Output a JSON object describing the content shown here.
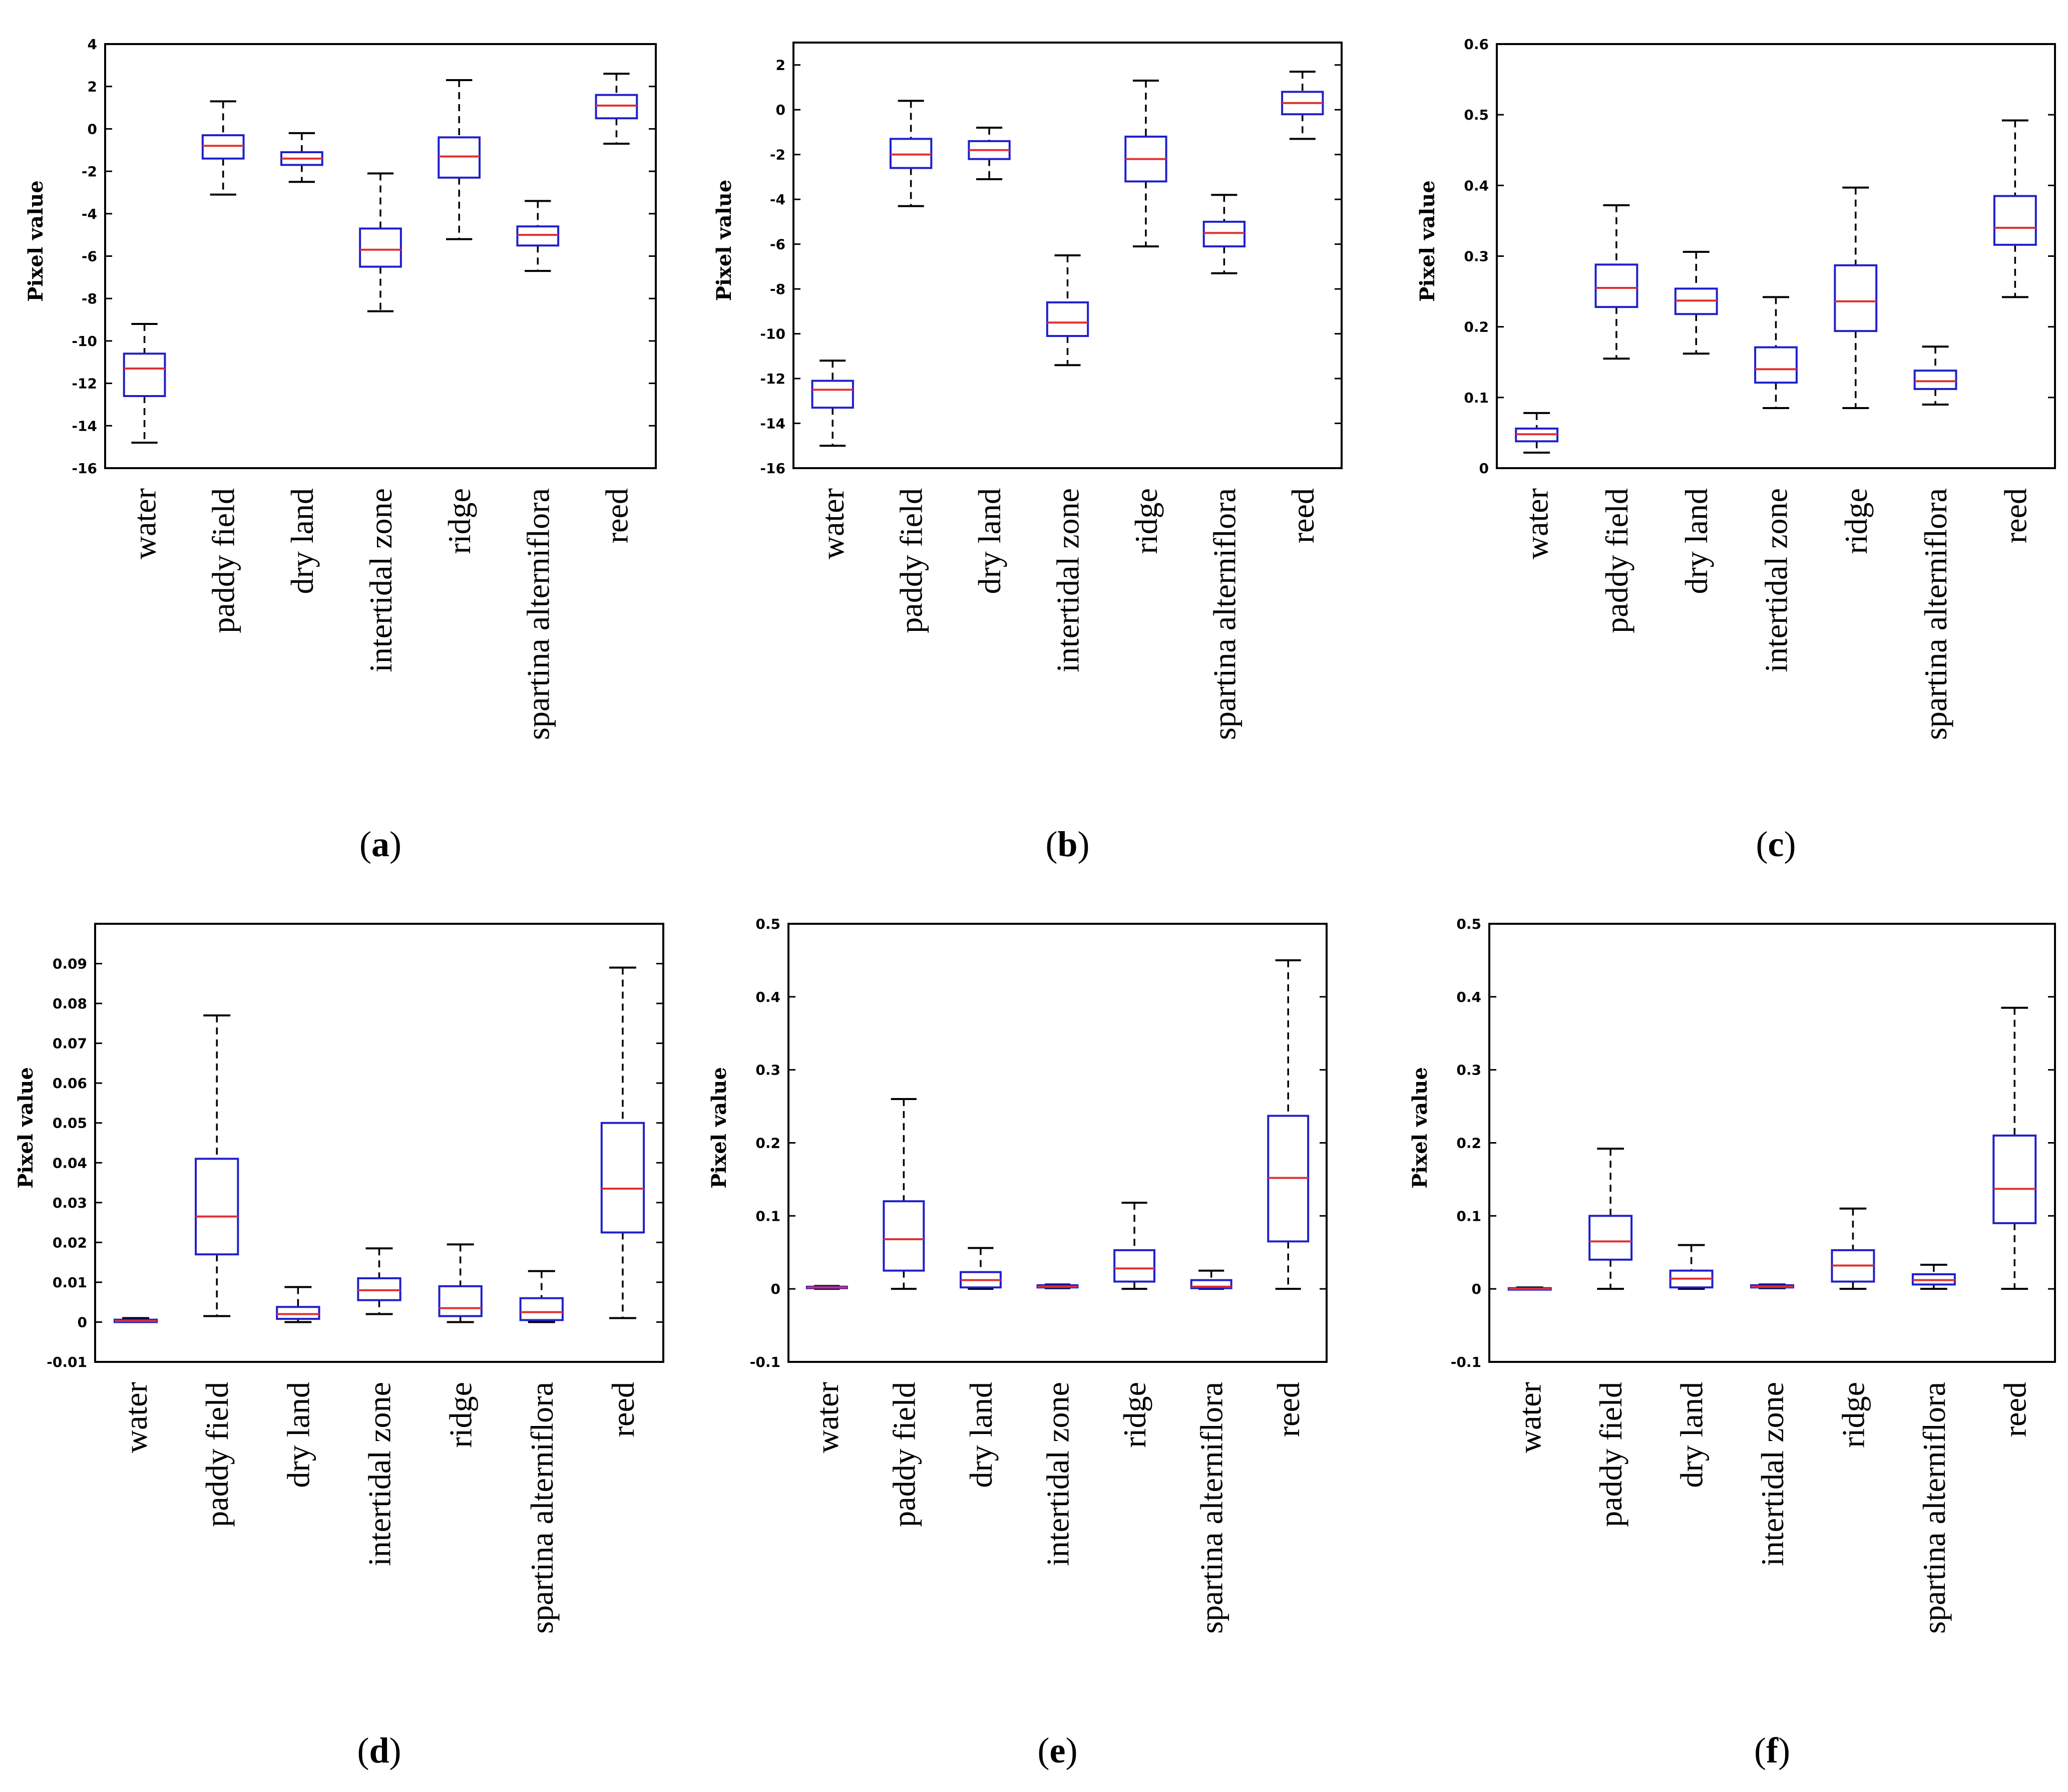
{
  "colors": {
    "box": "#1f1fcc",
    "median": "#e03030",
    "whisker": "#000000",
    "axis": "#000000"
  },
  "chart_data": [
    {
      "type": "box",
      "panel_label": "a",
      "ylabel": "Pixel value",
      "categories": [
        "water",
        "paddy field",
        "dry land",
        "intertidal zone",
        "ridge",
        "spartina alterniflora",
        "reed"
      ],
      "ylim": [
        -16,
        4
      ],
      "yticks": [
        -16,
        -14,
        -12,
        -10,
        -8,
        -6,
        -4,
        -2,
        0,
        2,
        4
      ],
      "ytick_labels": [
        "-16",
        "-14",
        "-12",
        "-10",
        "-8",
        "-6",
        "-4",
        "-2",
        "0",
        "2",
        "4"
      ],
      "boxes": [
        {
          "min": -14.8,
          "q1": -12.6,
          "median": -11.3,
          "q3": -10.6,
          "max": -9.2
        },
        {
          "min": -3.1,
          "q1": -1.4,
          "median": -0.8,
          "q3": -0.3,
          "max": 1.3
        },
        {
          "min": -2.5,
          "q1": -1.7,
          "median": -1.4,
          "q3": -1.1,
          "max": -0.2
        },
        {
          "min": -8.6,
          "q1": -6.5,
          "median": -5.7,
          "q3": -4.7,
          "max": -2.1
        },
        {
          "min": -5.2,
          "q1": -2.3,
          "median": -1.3,
          "q3": -0.4,
          "max": 2.3
        },
        {
          "min": -6.7,
          "q1": -5.5,
          "median": -5.0,
          "q3": -4.6,
          "max": -3.4
        },
        {
          "min": -0.7,
          "q1": 0.5,
          "median": 1.1,
          "q3": 1.6,
          "max": 2.6
        }
      ]
    },
    {
      "type": "box",
      "panel_label": "b",
      "ylabel": "Pixel value",
      "categories": [
        "water",
        "paddy field",
        "dry land",
        "intertidal zone",
        "ridge",
        "spartina alterniflora",
        "reed"
      ],
      "ylim": [
        -16,
        3
      ],
      "yticks": [
        -16,
        -14,
        -12,
        -10,
        -8,
        -6,
        -4,
        -2,
        0,
        2
      ],
      "ytick_labels": [
        "-16",
        "-14",
        "-12",
        "-10",
        "-8",
        "-6",
        "-4",
        "-2",
        "0",
        "2"
      ],
      "boxes": [
        {
          "min": -15.0,
          "q1": -13.3,
          "median": -12.5,
          "q3": -12.1,
          "max": -11.2
        },
        {
          "min": -4.3,
          "q1": -2.6,
          "median": -2.0,
          "q3": -1.3,
          "max": 0.4
        },
        {
          "min": -3.1,
          "q1": -2.2,
          "median": -1.8,
          "q3": -1.4,
          "max": -0.8
        },
        {
          "min": -11.4,
          "q1": -10.1,
          "median": -9.5,
          "q3": -8.6,
          "max": -6.5
        },
        {
          "min": -6.1,
          "q1": -3.2,
          "median": -2.2,
          "q3": -1.2,
          "max": 1.3
        },
        {
          "min": -7.3,
          "q1": -6.1,
          "median": -5.5,
          "q3": -5.0,
          "max": -3.8
        },
        {
          "min": -1.3,
          "q1": -0.2,
          "median": 0.3,
          "q3": 0.8,
          "max": 1.7
        }
      ]
    },
    {
      "type": "box",
      "panel_label": "c",
      "ylabel": "Pixel value",
      "categories": [
        "water",
        "paddy field",
        "dry land",
        "intertidal zone",
        "ridge",
        "spartina alterniflora",
        "reed"
      ],
      "ylim": [
        0,
        0.6
      ],
      "yticks": [
        0,
        0.1,
        0.2,
        0.3,
        0.4,
        0.5,
        0.6
      ],
      "ytick_labels": [
        "0",
        "0.1",
        "0.2",
        "0.3",
        "0.4",
        "0.5",
        "0.6"
      ],
      "boxes": [
        {
          "min": 0.022,
          "q1": 0.038,
          "median": 0.048,
          "q3": 0.056,
          "max": 0.078
        },
        {
          "min": 0.155,
          "q1": 0.228,
          "median": 0.255,
          "q3": 0.288,
          "max": 0.372
        },
        {
          "min": 0.162,
          "q1": 0.218,
          "median": 0.237,
          "q3": 0.254,
          "max": 0.306
        },
        {
          "min": 0.085,
          "q1": 0.121,
          "median": 0.14,
          "q3": 0.171,
          "max": 0.242
        },
        {
          "min": 0.085,
          "q1": 0.194,
          "median": 0.236,
          "q3": 0.287,
          "max": 0.397
        },
        {
          "min": 0.09,
          "q1": 0.112,
          "median": 0.123,
          "q3": 0.138,
          "max": 0.172
        },
        {
          "min": 0.242,
          "q1": 0.316,
          "median": 0.34,
          "q3": 0.385,
          "max": 0.492
        }
      ]
    },
    {
      "type": "box",
      "panel_label": "d",
      "ylabel": "Pixel value",
      "categories": [
        "water",
        "paddy field",
        "dry land",
        "intertidal zone",
        "ridge",
        "spartina alterniflora",
        "reed"
      ],
      "ylim": [
        -0.01,
        0.1
      ],
      "yticks": [
        -0.01,
        0,
        0.01,
        0.02,
        0.03,
        0.04,
        0.05,
        0.06,
        0.07,
        0.08,
        0.09
      ],
      "ytick_labels": [
        "-0.01",
        "0",
        "0.01",
        "0.02",
        "0.03",
        "0.04",
        "0.05",
        "0.06",
        "0.07",
        "0.08",
        "0.09"
      ],
      "boxes": [
        {
          "min": 0.0,
          "q1": 0.0,
          "median": 0.0003,
          "q3": 0.0006,
          "max": 0.001
        },
        {
          "min": 0.0015,
          "q1": 0.017,
          "median": 0.0265,
          "q3": 0.041,
          "max": 0.077
        },
        {
          "min": 0.0,
          "q1": 0.0008,
          "median": 0.002,
          "q3": 0.0038,
          "max": 0.0088
        },
        {
          "min": 0.002,
          "q1": 0.0055,
          "median": 0.008,
          "q3": 0.011,
          "max": 0.0185
        },
        {
          "min": 0.0,
          "q1": 0.0015,
          "median": 0.0035,
          "q3": 0.009,
          "max": 0.0195
        },
        {
          "min": 0.0,
          "q1": 0.0005,
          "median": 0.0025,
          "q3": 0.006,
          "max": 0.0128
        },
        {
          "min": 0.001,
          "q1": 0.0225,
          "median": 0.0335,
          "q3": 0.05,
          "max": 0.089
        }
      ]
    },
    {
      "type": "box",
      "panel_label": "e",
      "ylabel": "Pixel value",
      "categories": [
        "water",
        "paddy field",
        "dry land",
        "intertidal zone",
        "ridge",
        "spartina alterniflora",
        "reed"
      ],
      "ylim": [
        -0.1,
        0.5
      ],
      "yticks": [
        -0.1,
        0,
        0.1,
        0.2,
        0.3,
        0.4,
        0.5
      ],
      "ytick_labels": [
        "-0.1",
        "0",
        "0.1",
        "0.2",
        "0.3",
        "0.4",
        "0.5"
      ],
      "boxes": [
        {
          "min": 0.0,
          "q1": 0.001,
          "median": 0.002,
          "q3": 0.003,
          "max": 0.004
        },
        {
          "min": 0.0,
          "q1": 0.025,
          "median": 0.068,
          "q3": 0.12,
          "max": 0.26
        },
        {
          "min": 0.0,
          "q1": 0.002,
          "median": 0.012,
          "q3": 0.023,
          "max": 0.056
        },
        {
          "min": 0.001,
          "q1": 0.002,
          "median": 0.003,
          "q3": 0.005,
          "max": 0.006
        },
        {
          "min": 0.0,
          "q1": 0.01,
          "median": 0.028,
          "q3": 0.053,
          "max": 0.118
        },
        {
          "min": 0.0,
          "q1": 0.001,
          "median": 0.003,
          "q3": 0.012,
          "max": 0.025
        },
        {
          "min": 0.0,
          "q1": 0.065,
          "median": 0.152,
          "q3": 0.237,
          "max": 0.45
        }
      ]
    },
    {
      "type": "box",
      "panel_label": "f",
      "ylabel": "Pixel value",
      "categories": [
        "water",
        "paddy field",
        "dry land",
        "intertidal zone",
        "ridge",
        "spartina alterniflora",
        "reed"
      ],
      "ylim": [
        -0.1,
        0.5
      ],
      "yticks": [
        -0.1,
        0,
        0.1,
        0.2,
        0.3,
        0.4,
        0.5
      ],
      "ytick_labels": [
        "-0.1",
        "0",
        "0.1",
        "0.2",
        "0.3",
        "0.4",
        "0.5"
      ],
      "boxes": [
        {
          "min": 0.0,
          "q1": 0.0,
          "median": 0.0,
          "q3": 0.001,
          "max": 0.002
        },
        {
          "min": 0.0,
          "q1": 0.04,
          "median": 0.065,
          "q3": 0.1,
          "max": 0.192
        },
        {
          "min": 0.0,
          "q1": 0.002,
          "median": 0.014,
          "q3": 0.025,
          "max": 0.06
        },
        {
          "min": 0.001,
          "q1": 0.002,
          "median": 0.003,
          "q3": 0.005,
          "max": 0.006
        },
        {
          "min": 0.0,
          "q1": 0.01,
          "median": 0.032,
          "q3": 0.053,
          "max": 0.11
        },
        {
          "min": 0.0,
          "q1": 0.006,
          "median": 0.012,
          "q3": 0.02,
          "max": 0.033
        },
        {
          "min": 0.0,
          "q1": 0.09,
          "median": 0.137,
          "q3": 0.21,
          "max": 0.385
        }
      ]
    }
  ]
}
